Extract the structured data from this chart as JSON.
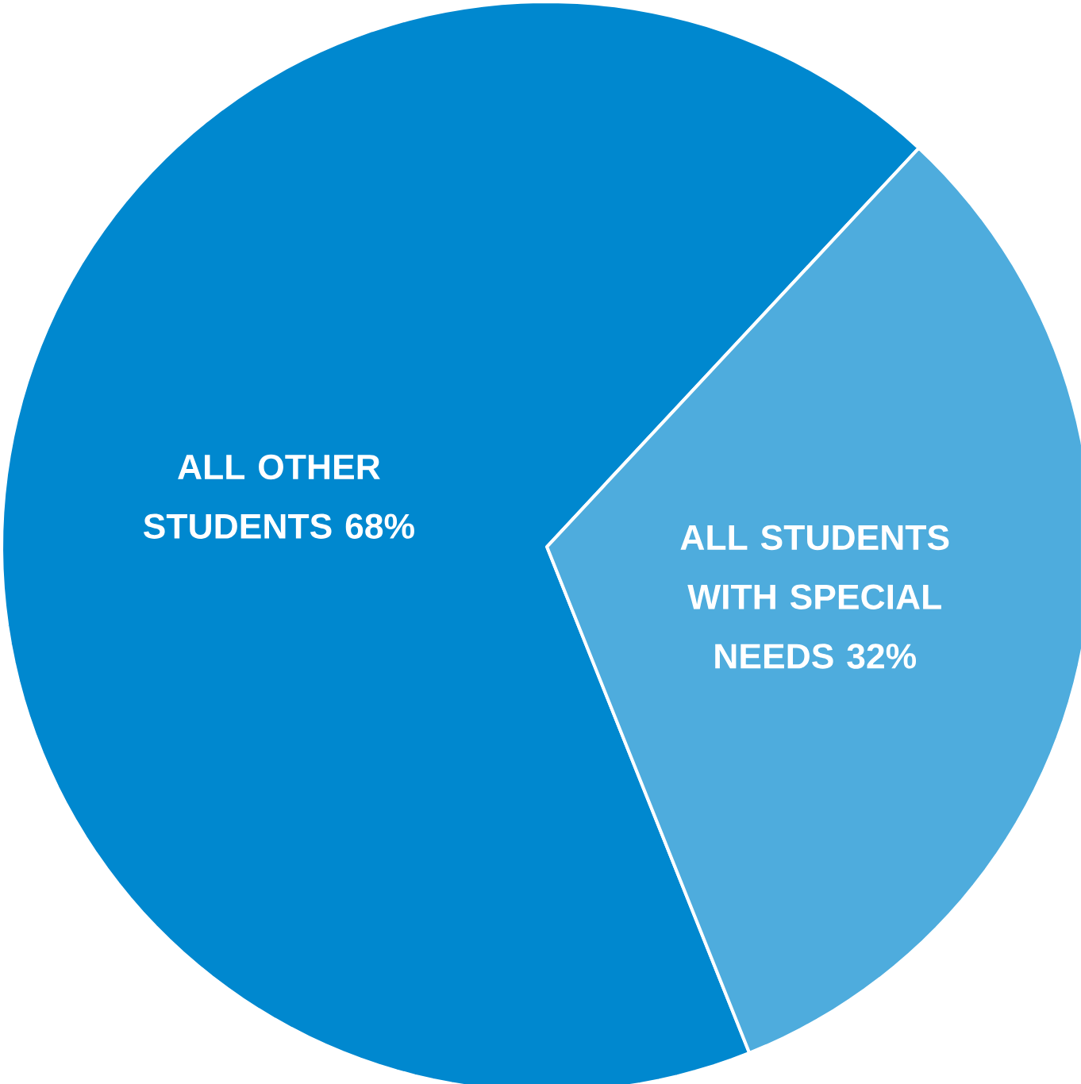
{
  "chart_data": {
    "type": "pie",
    "categories": [
      "ALL OTHER STUDENTS",
      "ALL STUDENTS WITH SPECIAL NEEDS"
    ],
    "values": [
      68,
      32
    ],
    "value_labels": [
      "68%",
      "32%"
    ],
    "colors": [
      "#0088cf",
      "#4eacdd"
    ]
  }
}
